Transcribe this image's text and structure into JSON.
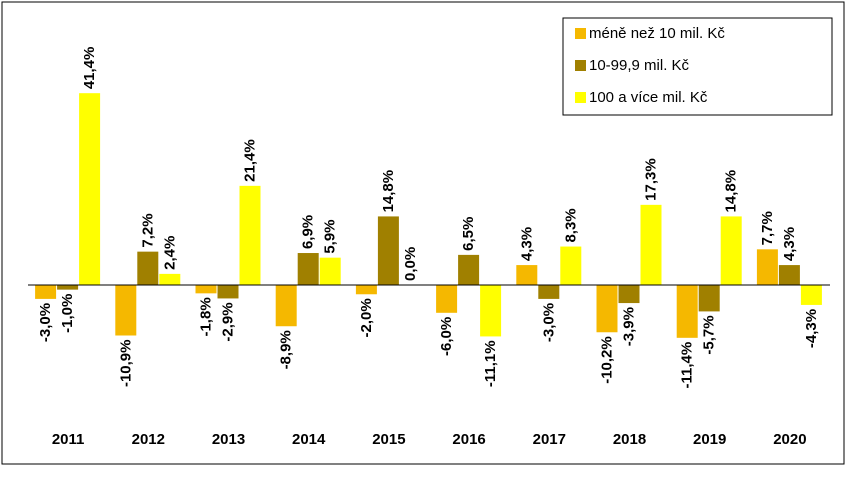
{
  "chart_data": {
    "type": "bar",
    "categories": [
      "2011",
      "2012",
      "2013",
      "2014",
      "2015",
      "2016",
      "2017",
      "2018",
      "2019",
      "2020"
    ],
    "series": [
      {
        "name": "méně než 10 mil. Kč",
        "color": "#f5b800",
        "values": [
          -3.0,
          -10.9,
          -1.8,
          -8.9,
          -2.0,
          -6.0,
          4.3,
          -10.2,
          -11.4,
          7.7
        ],
        "value_labels": [
          "-3,0%",
          "-10,9%",
          "-1,8%",
          "-8,9%",
          "-2,0%",
          "-6,0%",
          "4,3%",
          "-10,2%",
          "-11,4%",
          "7,7%"
        ]
      },
      {
        "name": "10-99,9 mil. Kč",
        "color": "#a08000",
        "values": [
          -1.0,
          7.2,
          -2.9,
          6.9,
          14.8,
          6.5,
          -3.0,
          -3.9,
          -5.7,
          4.3
        ],
        "value_labels": [
          "-1,0%",
          "7,2%",
          "-2,9%",
          "6,9%",
          "14,8%",
          "6,5%",
          "-3,0%",
          "-3,9%",
          "-5,7%",
          "4,3%"
        ]
      },
      {
        "name": "100 a více mil. Kč",
        "color": "#ffff00",
        "values": [
          41.4,
          2.4,
          21.4,
          5.9,
          0.0,
          -11.1,
          8.3,
          17.3,
          14.8,
          -4.3
        ],
        "value_labels": [
          "41,4%",
          "2,4%",
          "21,4%",
          "5,9%",
          "0,0%",
          "-11,1%",
          "8,3%",
          "17,3%",
          "14,8%",
          "-4,3%"
        ]
      }
    ],
    "ylim": [
      -30,
      60
    ],
    "legend": "upper right"
  }
}
